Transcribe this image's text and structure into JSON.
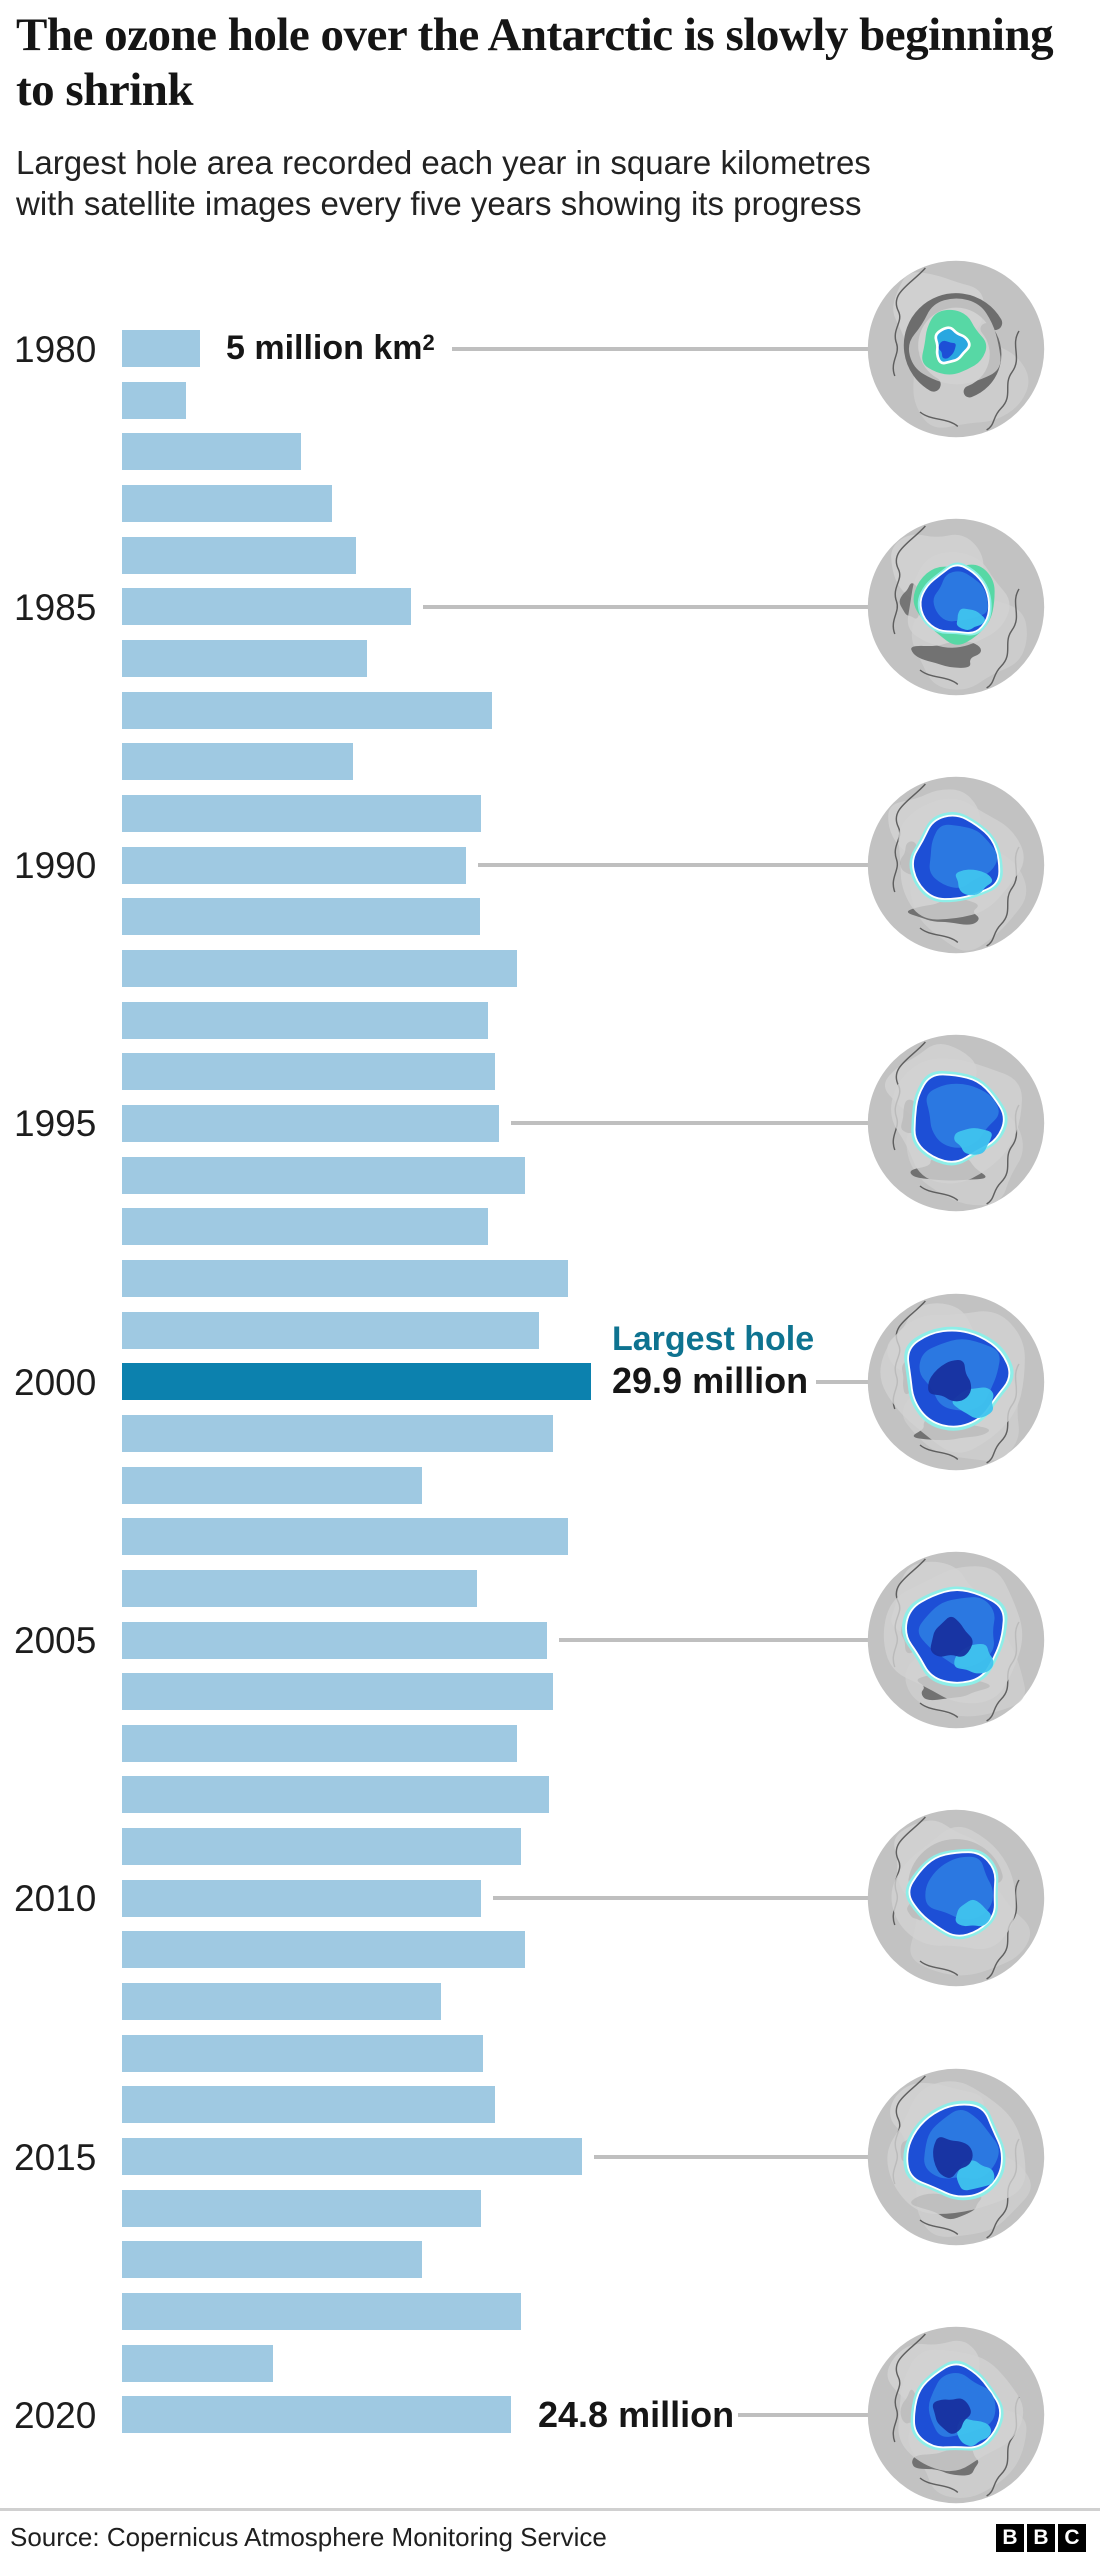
{
  "header": {
    "title": "The ozone hole over the Antarctic is slowly beginning to shrink",
    "subtitle_line1": "Largest hole area recorded each year in square kilometres",
    "subtitle_line2": "with satellite images every five years showing its progress"
  },
  "chart_data": {
    "type": "bar",
    "orientation": "horizontal",
    "title": "Largest ozone hole area recorded each year",
    "unit": "million km²",
    "xlim": [
      0,
      30
    ],
    "grid": false,
    "categories": [
      1980,
      1981,
      1982,
      1983,
      1984,
      1985,
      1986,
      1987,
      1988,
      1989,
      1990,
      1991,
      1992,
      1993,
      1994,
      1995,
      1996,
      1997,
      1998,
      1999,
      2000,
      2001,
      2002,
      2003,
      2004,
      2005,
      2006,
      2007,
      2008,
      2009,
      2010,
      2011,
      2012,
      2013,
      2014,
      2015,
      2016,
      2017,
      2018,
      2019,
      2020
    ],
    "values": [
      5.0,
      4.1,
      11.4,
      13.4,
      14.9,
      18.4,
      15.6,
      23.6,
      14.7,
      22.9,
      21.9,
      22.8,
      25.2,
      23.3,
      23.8,
      24.0,
      25.7,
      23.3,
      28.4,
      26.6,
      29.9,
      27.5,
      19.1,
      28.4,
      22.6,
      27.1,
      27.5,
      25.2,
      27.2,
      25.4,
      22.9,
      25.7,
      20.3,
      23.0,
      23.8,
      29.3,
      22.9,
      19.1,
      25.4,
      9.6,
      24.8
    ],
    "axis_year_labels": [
      1980,
      1985,
      1990,
      1995,
      2000,
      2005,
      2010,
      2015,
      2020
    ],
    "highlight_year": 2000,
    "colors": {
      "bar": "#9fc9e2",
      "highlight_bar": "#0c81ae",
      "leader_line": "#bfbfbf",
      "teal_text": "#0e7390"
    },
    "annotations": {
      "first_bar_label": "5 million km²",
      "largest_line1": "Largest hole",
      "largest_line2": "29.9 million",
      "last_bar_label": "24.8 million"
    }
  },
  "globes": [
    {
      "year": 1980,
      "hole_scale": 0.36,
      "style": "mint-speck"
    },
    {
      "year": 1985,
      "hole_scale": 0.4,
      "style": "mint-rim"
    },
    {
      "year": 1990,
      "hole_scale": 0.5,
      "style": "blue"
    },
    {
      "year": 1995,
      "hole_scale": 0.52,
      "style": "blue"
    },
    {
      "year": 2000,
      "hole_scale": 0.58,
      "style": "blue-big"
    },
    {
      "year": 2005,
      "hole_scale": 0.56,
      "style": "blue-big"
    },
    {
      "year": 2010,
      "hole_scale": 0.5,
      "style": "blue"
    },
    {
      "year": 2015,
      "hole_scale": 0.55,
      "style": "blue-core"
    },
    {
      "year": 2020,
      "hole_scale": 0.5,
      "style": "blue-core"
    }
  ],
  "footer": {
    "source": "Source: Copernicus Atmosphere Monitoring Service",
    "logo_letters": [
      "B",
      "B",
      "C"
    ]
  }
}
